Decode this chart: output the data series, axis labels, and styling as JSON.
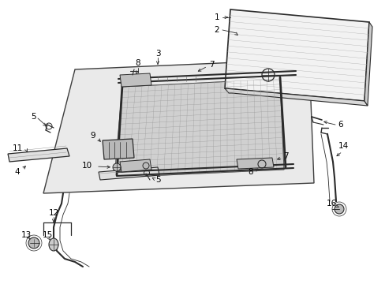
{
  "bg_color": "#ffffff",
  "line_color": "#2a2a2a",
  "label_color": "#000000",
  "fig_width": 4.89,
  "fig_height": 3.6,
  "dpi": 100,
  "gray_fill": "#e0e0e0",
  "light_gray": "#f0f0f0",
  "hatch_color": "#bbbbbb"
}
